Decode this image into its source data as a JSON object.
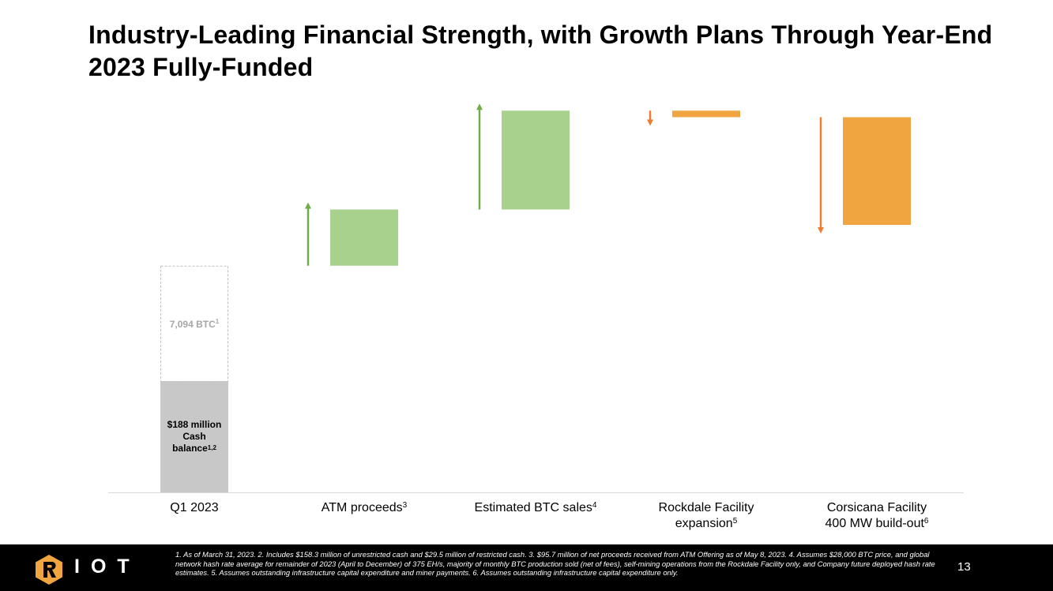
{
  "slide": {
    "title": "Industry-Leading Financial Strength, with Growth Plans Through Year-End 2023 Fully-Funded",
    "page_number": "13"
  },
  "chart_data": {
    "type": "waterfall",
    "title": "",
    "colors": {
      "increase": "#a9d18e",
      "decrease": "#f0a540",
      "base": "#c8c8c8",
      "btc_outline": "#bfbfbf",
      "up_arrow": "#70ad47",
      "down_arrow": "#ed7d31"
    },
    "ylim": [
      0,
      500
    ],
    "categories": [
      {
        "key": "q1",
        "label": "Q1 2023",
        "sup": "",
        "label2": "",
        "sup2": ""
      },
      {
        "key": "atm",
        "label": "ATM proceeds",
        "sup": "3",
        "label2": "",
        "sup2": ""
      },
      {
        "key": "btc",
        "label": "Estimated BTC sales",
        "sup": "4",
        "label2": "",
        "sup2": ""
      },
      {
        "key": "rockdale",
        "label": "Rockdale Facility",
        "sup": "",
        "label2": "expansion",
        "sup2": "5"
      },
      {
        "key": "corsicana",
        "label": "Corsicana Facility",
        "sup": "",
        "label2": "400 MW build-out",
        "sup2": "6"
      }
    ],
    "base_bar": {
      "cash_value": 188,
      "btc_value": 195,
      "cash_label": [
        "$188 million",
        "Cash",
        "balance"
      ],
      "cash_sup": "1,2",
      "btc_label": "7,094 BTC",
      "btc_sup": "1"
    },
    "steps": [
      {
        "category": "ATM proceeds",
        "start": 383,
        "end": 478,
        "direction": "up"
      },
      {
        "category": "Estimated BTC sales",
        "start": 478,
        "end": 645,
        "direction": "up"
      },
      {
        "category": "Rockdale Facility expansion",
        "start": 645,
        "end": 634,
        "direction": "down"
      },
      {
        "category": "Corsicana Facility 400 MW build-out",
        "start": 634,
        "end": 452,
        "direction": "down"
      }
    ]
  },
  "footer": {
    "logo_text": "IOT",
    "footnotes": "1. As of March 31, 2023.  2. Includes $158.3 million of unrestricted cash and $29.5 million of restricted cash.  3. $95.7 million of net proceeds received from ATM Offering as of May 8, 2023.  4. Assumes $28,000 BTC price, and global network hash rate average for remainder of 2023 (April to December) of 375 EH/s, majority of monthly BTC production sold (net of fees), self-mining operations from the Rockdale Facility only, and Company future deployed hash rate estimates.  5. Assumes outstanding infrastructure capital expenditure and miner payments.  6. Assumes outstanding infrastructure capital expenditure only."
  }
}
